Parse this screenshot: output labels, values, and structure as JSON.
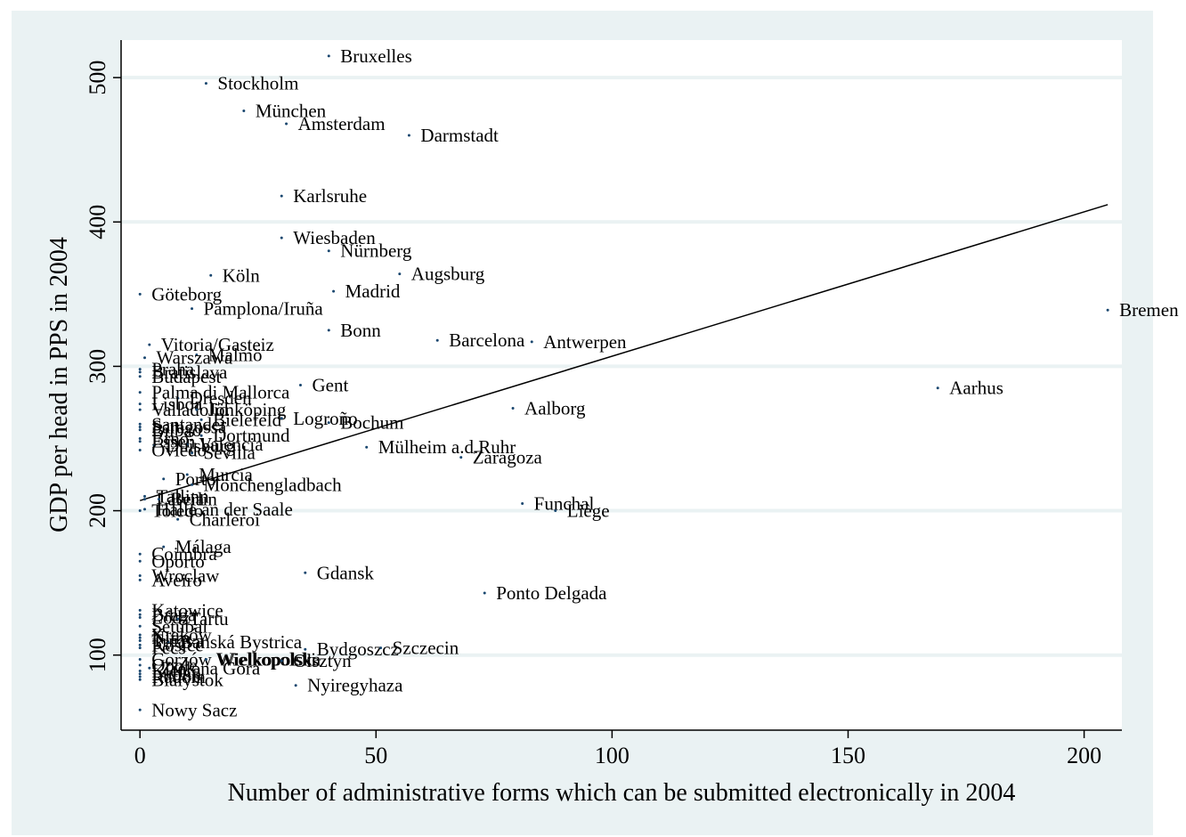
{
  "chart_data": {
    "type": "scatter",
    "title": "",
    "xlabel": "Number of administrative forms which can be submitted electronically in 2004",
    "ylabel": "GDP per head in PPS in 2004",
    "xlim": [
      -4,
      208
    ],
    "ylim": [
      48,
      526
    ],
    "x_ticks": [
      0,
      50,
      100,
      150,
      200
    ],
    "y_ticks": [
      100,
      200,
      300,
      400,
      500
    ],
    "grid": "horizontal",
    "colors": {
      "background": "#eaf2f3",
      "plot_area": "#ffffff",
      "gridline": "#eaf2f3",
      "marker": "#1a476f",
      "axis": "#000000"
    },
    "fit_line": {
      "type": "linear",
      "x": [
        0,
        205
      ],
      "y": [
        207,
        412
      ]
    },
    "points": [
      {
        "label": "Bruxelles",
        "x": 40,
        "y": 515
      },
      {
        "label": "Stockholm",
        "x": 14,
        "y": 496
      },
      {
        "label": "München",
        "x": 22,
        "y": 477
      },
      {
        "label": "Amsterdam",
        "x": 31,
        "y": 468
      },
      {
        "label": "Darmstadt",
        "x": 57,
        "y": 460
      },
      {
        "label": "Karlsruhe",
        "x": 30,
        "y": 418
      },
      {
        "label": "Wiesbaden",
        "x": 30,
        "y": 389
      },
      {
        "label": "Nürnberg",
        "x": 40,
        "y": 380
      },
      {
        "label": "Augsburg",
        "x": 55,
        "y": 364
      },
      {
        "label": "Köln",
        "x": 15,
        "y": 363
      },
      {
        "label": "Madrid",
        "x": 41,
        "y": 352
      },
      {
        "label": "Göteborg",
        "x": 0,
        "y": 350
      },
      {
        "label": "Pamplona/Iruña",
        "x": 11,
        "y": 340
      },
      {
        "label": "Bremen",
        "x": 205,
        "y": 339
      },
      {
        "label": "Bonn",
        "x": 40,
        "y": 325
      },
      {
        "label": "Barcelona",
        "x": 63,
        "y": 318
      },
      {
        "label": "Antwerpen",
        "x": 83,
        "y": 317
      },
      {
        "label": "Vitoria/Gasteiz",
        "x": 2,
        "y": 315
      },
      {
        "label": "Malmö",
        "x": 12,
        "y": 308
      },
      {
        "label": "Warszawa",
        "x": 1,
        "y": 306
      },
      {
        "label": "Praha",
        "x": 0,
        "y": 298
      },
      {
        "label": "Bratislava",
        "x": 0,
        "y": 296
      },
      {
        "label": "Budapest",
        "x": 0,
        "y": 293
      },
      {
        "label": "Gent",
        "x": 34,
        "y": 287
      },
      {
        "label": "Aarhus",
        "x": 169,
        "y": 285
      },
      {
        "label": "Palma di Mallorca",
        "x": 0,
        "y": 282
      },
      {
        "label": "Dresden",
        "x": 8,
        "y": 278
      },
      {
        "label": "Lisboa",
        "x": 0,
        "y": 274
      },
      {
        "label": "Aalborg",
        "x": 79,
        "y": 271
      },
      {
        "label": "Valladolid",
        "x": 0,
        "y": 270
      },
      {
        "label": "Jönköping",
        "x": 12,
        "y": 270
      },
      {
        "label": "Logroño",
        "x": 30,
        "y": 264
      },
      {
        "label": "Bielefeld",
        "x": 13,
        "y": 263
      },
      {
        "label": "Bochum",
        "x": 40,
        "y": 261
      },
      {
        "label": "Santander",
        "x": 0,
        "y": 260
      },
      {
        "label": "Saragossa",
        "x": 0,
        "y": 258
      },
      {
        "label": "Bilbao",
        "x": 0,
        "y": 256
      },
      {
        "label": "Dortmund",
        "x": 13,
        "y": 252
      },
      {
        "label": "Brno",
        "x": 0,
        "y": 250
      },
      {
        "label": "Essen",
        "x": 0,
        "y": 248
      },
      {
        "label": "Valencia",
        "x": 10,
        "y": 246
      },
      {
        "label": "Duisburg",
        "x": 3,
        "y": 245
      },
      {
        "label": "Mülheim a.d.Ruhr",
        "x": 48,
        "y": 244
      },
      {
        "label": "Oviedo",
        "x": 0,
        "y": 242
      },
      {
        "label": "Sevilla",
        "x": 11,
        "y": 240
      },
      {
        "label": "Zaragoza",
        "x": 68,
        "y": 237
      },
      {
        "label": "Murcia",
        "x": 10,
        "y": 225
      },
      {
        "label": "Porto",
        "x": 5,
        "y": 222
      },
      {
        "label": "Mönchengladbach",
        "x": 11,
        "y": 218
      },
      {
        "label": "Tallinn",
        "x": 1,
        "y": 210
      },
      {
        "label": "Latvia",
        "x": 1,
        "y": 208
      },
      {
        "label": "Berlin",
        "x": 4,
        "y": 208
      },
      {
        "label": "Funchal",
        "x": 81,
        "y": 205
      },
      {
        "label": "Liège",
        "x": 88,
        "y": 200
      },
      {
        "label": "Halle an der Saale",
        "x": 1,
        "y": 201
      },
      {
        "label": "Toledo",
        "x": 0,
        "y": 200
      },
      {
        "label": "Charleroi",
        "x": 8,
        "y": 194
      },
      {
        "label": "Málaga",
        "x": 5,
        "y": 175
      },
      {
        "label": "Coimbra",
        "x": 0,
        "y": 170
      },
      {
        "label": "Oporto",
        "x": 0,
        "y": 165
      },
      {
        "label": "Gdansk",
        "x": 35,
        "y": 157
      },
      {
        "label": "Wroclaw",
        "x": 0,
        "y": 155
      },
      {
        "label": "Aveiro",
        "x": 0,
        "y": 152
      },
      {
        "label": "Ponto Delgada",
        "x": 73,
        "y": 143
      },
      {
        "label": "Katowice",
        "x": 0,
        "y": 131
      },
      {
        "label": "Braga",
        "x": 0,
        "y": 128
      },
      {
        "label": "Łódź",
        "x": 0,
        "y": 126
      },
      {
        "label": "Tartu",
        "x": 8,
        "y": 125
      },
      {
        "label": "Setúbal",
        "x": 0,
        "y": 120
      },
      {
        "label": "Kraków",
        "x": 0,
        "y": 114
      },
      {
        "label": "Nitra",
        "x": 0,
        "y": 112
      },
      {
        "label": "Trnava",
        "x": 0,
        "y": 110
      },
      {
        "label": "Banská Bystrica",
        "x": 6,
        "y": 109
      },
      {
        "label": "Košice",
        "x": 0,
        "y": 107
      },
      {
        "label": "Pécs",
        "x": 0,
        "y": 105
      },
      {
        "label": "Bydgoszcz",
        "x": 35,
        "y": 104
      },
      {
        "label": "Szczecin",
        "x": 51,
        "y": 105
      },
      {
        "label": "Gorzów Wielkopolski",
        "x": 0,
        "y": 97
      },
      {
        "label": "Wielkopolska",
        "x": 14,
        "y": 97
      },
      {
        "label": "Olsztyn",
        "x": 30,
        "y": 96
      },
      {
        "label": "Opole",
        "x": 0,
        "y": 93
      },
      {
        "label": "Zielona Góra",
        "x": 2,
        "y": 91
      },
      {
        "label": "Kielce",
        "x": 0,
        "y": 89
      },
      {
        "label": "Lublin",
        "x": 0,
        "y": 87
      },
      {
        "label": "Radom",
        "x": 0,
        "y": 85
      },
      {
        "label": "Białystok",
        "x": 0,
        "y": 83
      },
      {
        "label": "Nyiregyhaza",
        "x": 33,
        "y": 79
      },
      {
        "label": "Nowy Sacz",
        "x": 0,
        "y": 62
      }
    ]
  }
}
